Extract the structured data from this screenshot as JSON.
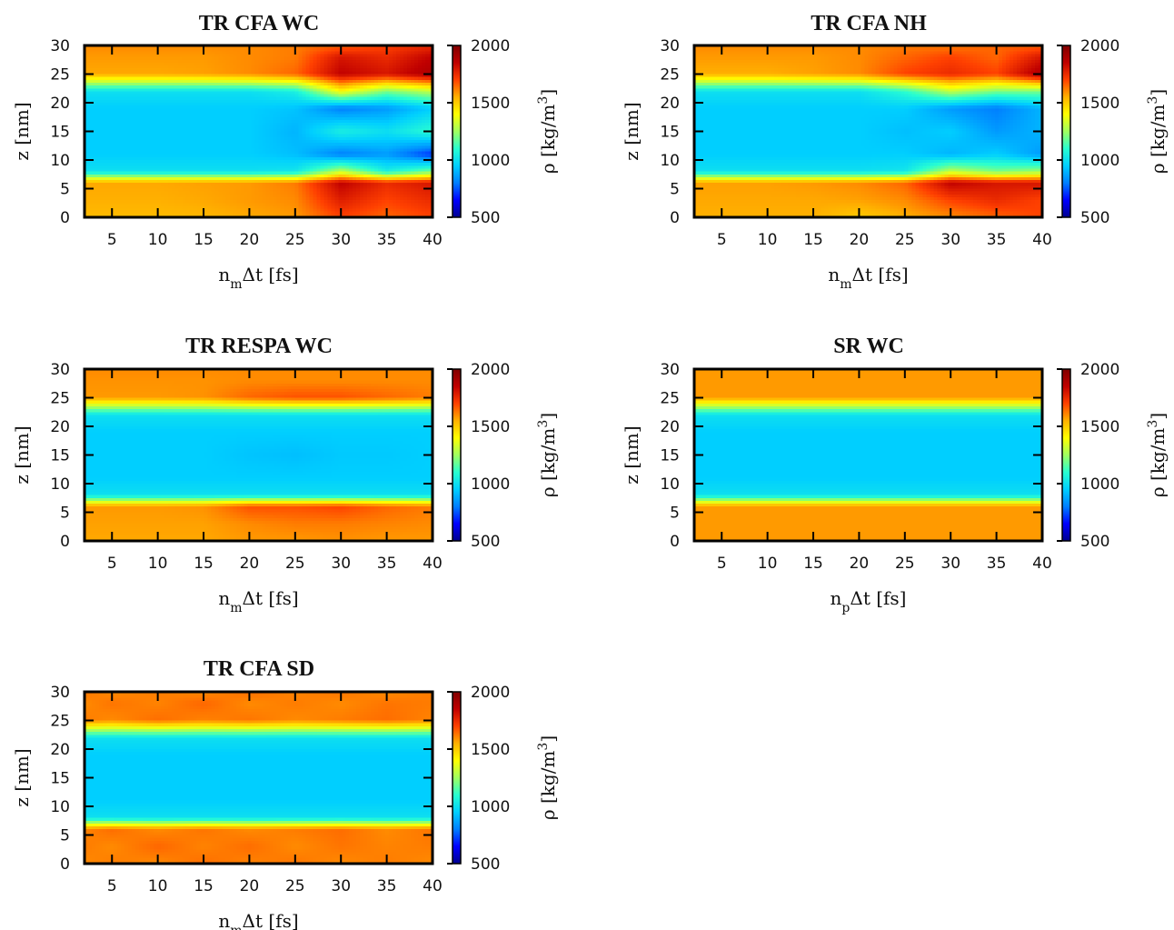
{
  "colormap": [
    "#00008f",
    "#0000ff",
    "#007fff",
    "#00cfff",
    "#29ffd0",
    "#a0ff5f",
    "#ffff00",
    "#ffb000",
    "#ff4000",
    "#c00000",
    "#800000"
  ],
  "chart_data": [
    {
      "type": "heatmap",
      "title": "TR CFA WC",
      "xlabel": "n_mΔt [fs]",
      "ylabel": "z [nm]",
      "colorbar_label": "ρ [kg/m^3]",
      "xlim": [
        2,
        40
      ],
      "ylim": [
        0,
        30
      ],
      "xticks": [
        5,
        10,
        15,
        20,
        25,
        30,
        35,
        40
      ],
      "yticks": [
        0,
        5,
        10,
        15,
        20,
        25,
        30
      ],
      "clim": [
        500,
        2000
      ],
      "cticks": [
        500,
        1000,
        1500,
        2000
      ],
      "xs": [
        2,
        5,
        10,
        15,
        20,
        25,
        30,
        35,
        40
      ],
      "zs": [
        0,
        3,
        6,
        8,
        11,
        15,
        19,
        22,
        25,
        28,
        30
      ],
      "density": [
        [
          1530,
          1530,
          1530,
          1540,
          1560,
          1580,
          1700,
          1650,
          1700
        ],
        [
          1550,
          1550,
          1550,
          1560,
          1580,
          1600,
          1780,
          1700,
          1750
        ],
        [
          1560,
          1560,
          1560,
          1570,
          1580,
          1620,
          1850,
          1750,
          1800
        ],
        [
          1000,
          1000,
          1000,
          1000,
          1000,
          1020,
          1300,
          1050,
          1200
        ],
        [
          950,
          950,
          950,
          950,
          950,
          920,
          800,
          850,
          700
        ],
        [
          950,
          950,
          950,
          950,
          950,
          900,
          1050,
          1000,
          1100
        ],
        [
          950,
          950,
          950,
          950,
          950,
          930,
          800,
          850,
          950
        ],
        [
          1000,
          1000,
          1000,
          1000,
          1000,
          1050,
          1400,
          1200,
          1300
        ],
        [
          1560,
          1560,
          1560,
          1570,
          1600,
          1650,
          1850,
          1800,
          1900
        ],
        [
          1580,
          1580,
          1580,
          1580,
          1600,
          1620,
          1800,
          1750,
          1850
        ],
        [
          1600,
          1600,
          1600,
          1600,
          1600,
          1620,
          1650,
          1700,
          1750
        ]
      ]
    },
    {
      "type": "heatmap",
      "title": "TR CFA NH",
      "xlabel": "n_mΔt [fs]",
      "ylabel": "z [nm]",
      "colorbar_label": "ρ [kg/m^3]",
      "xlim": [
        2,
        40
      ],
      "ylim": [
        0,
        30
      ],
      "xticks": [
        5,
        10,
        15,
        20,
        25,
        30,
        35,
        40
      ],
      "yticks": [
        0,
        5,
        10,
        15,
        20,
        25,
        30
      ],
      "clim": [
        500,
        2000
      ],
      "cticks": [
        500,
        1000,
        1500,
        2000
      ],
      "xs": [
        2,
        5,
        10,
        15,
        20,
        25,
        30,
        35,
        40
      ],
      "zs": [
        0,
        3,
        6,
        8,
        11,
        15,
        19,
        22,
        25,
        28,
        30
      ],
      "density": [
        [
          1550,
          1550,
          1550,
          1550,
          1500,
          1550,
          1600,
          1650,
          1700
        ],
        [
          1560,
          1560,
          1560,
          1560,
          1570,
          1600,
          1700,
          1750,
          1700
        ],
        [
          1570,
          1570,
          1570,
          1580,
          1600,
          1650,
          1850,
          1800,
          1800
        ],
        [
          1000,
          1000,
          1000,
          1000,
          1000,
          1020,
          1300,
          1200,
          1250
        ],
        [
          950,
          950,
          950,
          950,
          950,
          950,
          900,
          950,
          850
        ],
        [
          950,
          950,
          950,
          950,
          950,
          920,
          950,
          850,
          900
        ],
        [
          950,
          950,
          950,
          950,
          950,
          950,
          850,
          800,
          900
        ],
        [
          1000,
          1000,
          1000,
          1000,
          1000,
          1100,
          1300,
          1200,
          1200
        ],
        [
          1550,
          1550,
          1550,
          1570,
          1600,
          1700,
          1750,
          1700,
          1900
        ],
        [
          1580,
          1580,
          1580,
          1580,
          1600,
          1650,
          1700,
          1650,
          1800
        ],
        [
          1600,
          1600,
          1600,
          1600,
          1600,
          1620,
          1620,
          1650,
          1650
        ]
      ]
    },
    {
      "type": "heatmap",
      "title": "TR RESPA WC",
      "xlabel": "n_mΔt [fs]",
      "ylabel": "z [nm]",
      "colorbar_label": "ρ [kg/m^3]",
      "xlim": [
        2,
        40
      ],
      "ylim": [
        0,
        30
      ],
      "xticks": [
        5,
        10,
        15,
        20,
        25,
        30,
        35,
        40
      ],
      "yticks": [
        0,
        5,
        10,
        15,
        20,
        25,
        30
      ],
      "clim": [
        500,
        2000
      ],
      "cticks": [
        500,
        1000,
        1500,
        2000
      ],
      "xs": [
        2,
        5,
        10,
        15,
        20,
        25,
        30,
        35,
        40
      ],
      "zs": [
        0,
        3,
        6,
        8,
        11,
        15,
        19,
        22,
        25,
        28,
        30
      ],
      "density": [
        [
          1560,
          1560,
          1560,
          1560,
          1580,
          1580,
          1590,
          1580,
          1580
        ],
        [
          1570,
          1570,
          1570,
          1570,
          1600,
          1620,
          1620,
          1610,
          1600
        ],
        [
          1580,
          1580,
          1580,
          1590,
          1680,
          1680,
          1700,
          1650,
          1620
        ],
        [
          1000,
          1000,
          1000,
          1000,
          1000,
          1000,
          1000,
          1000,
          1000
        ],
        [
          950,
          950,
          950,
          950,
          950,
          950,
          950,
          950,
          950
        ],
        [
          950,
          950,
          950,
          950,
          930,
          920,
          940,
          940,
          950
        ],
        [
          950,
          950,
          950,
          950,
          950,
          950,
          950,
          950,
          950
        ],
        [
          1000,
          1000,
          1000,
          1000,
          1000,
          1000,
          1000,
          1000,
          1000
        ],
        [
          1580,
          1580,
          1580,
          1590,
          1650,
          1680,
          1680,
          1650,
          1620
        ],
        [
          1590,
          1590,
          1590,
          1590,
          1600,
          1600,
          1600,
          1600,
          1600
        ],
        [
          1600,
          1600,
          1600,
          1600,
          1600,
          1600,
          1600,
          1600,
          1600
        ]
      ]
    },
    {
      "type": "heatmap",
      "title": "SR WC",
      "xlabel": "n_pΔt [fs]",
      "ylabel": "z [nm]",
      "colorbar_label": "ρ [kg/m^3]",
      "xlim": [
        2,
        40
      ],
      "ylim": [
        0,
        30
      ],
      "xticks": [
        5,
        10,
        15,
        20,
        25,
        30,
        35,
        40
      ],
      "yticks": [
        0,
        5,
        10,
        15,
        20,
        25,
        30
      ],
      "clim": [
        500,
        2000
      ],
      "cticks": [
        500,
        1000,
        1500,
        2000
      ],
      "xs": [
        2,
        5,
        10,
        15,
        20,
        25,
        30,
        35,
        40
      ],
      "zs": [
        0,
        3,
        6,
        8,
        11,
        15,
        19,
        22,
        25,
        28,
        30
      ],
      "density": [
        [
          1580,
          1580,
          1580,
          1580,
          1580,
          1580,
          1580,
          1580,
          1580
        ],
        [
          1580,
          1580,
          1580,
          1580,
          1580,
          1580,
          1580,
          1580,
          1580
        ],
        [
          1580,
          1580,
          1580,
          1580,
          1580,
          1580,
          1580,
          1580,
          1580
        ],
        [
          1000,
          1000,
          1000,
          1000,
          1000,
          1000,
          1000,
          1000,
          1000
        ],
        [
          950,
          950,
          950,
          950,
          950,
          950,
          950,
          950,
          950
        ],
        [
          950,
          950,
          950,
          950,
          950,
          950,
          950,
          950,
          950
        ],
        [
          950,
          950,
          950,
          950,
          950,
          950,
          950,
          950,
          950
        ],
        [
          1000,
          1000,
          1000,
          1000,
          1000,
          1000,
          1000,
          1000,
          1000
        ],
        [
          1580,
          1580,
          1580,
          1580,
          1580,
          1580,
          1580,
          1580,
          1580
        ],
        [
          1580,
          1580,
          1580,
          1580,
          1580,
          1580,
          1580,
          1580,
          1580
        ],
        [
          1580,
          1580,
          1580,
          1580,
          1580,
          1580,
          1580,
          1580,
          1580
        ]
      ]
    },
    {
      "type": "heatmap",
      "title": "TR CFA SD",
      "xlabel": "n_mΔt [fs]",
      "ylabel": "z [nm]",
      "colorbar_label": "ρ [kg/m^3]",
      "xlim": [
        2,
        40
      ],
      "ylim": [
        0,
        30
      ],
      "xticks": [
        5,
        10,
        15,
        20,
        25,
        30,
        35,
        40
      ],
      "yticks": [
        0,
        5,
        10,
        15,
        20,
        25,
        30
      ],
      "clim": [
        500,
        2000
      ],
      "cticks": [
        500,
        1000,
        1500,
        2000
      ],
      "xs": [
        2,
        5,
        10,
        15,
        20,
        25,
        30,
        35,
        40
      ],
      "zs": [
        0,
        3,
        6,
        8,
        11,
        15,
        19,
        22,
        25,
        28,
        30
      ],
      "density": [
        [
          1600,
          1620,
          1600,
          1640,
          1610,
          1630,
          1600,
          1620,
          1600
        ],
        [
          1620,
          1600,
          1650,
          1610,
          1640,
          1600,
          1630,
          1610,
          1620
        ],
        [
          1610,
          1640,
          1600,
          1630,
          1600,
          1620,
          1640,
          1600,
          1630
        ],
        [
          1000,
          1000,
          1000,
          1000,
          1000,
          1000,
          1000,
          1000,
          1000
        ],
        [
          950,
          950,
          950,
          950,
          950,
          950,
          950,
          950,
          950
        ],
        [
          950,
          950,
          950,
          950,
          950,
          950,
          950,
          950,
          950
        ],
        [
          950,
          950,
          950,
          950,
          950,
          950,
          950,
          950,
          950
        ],
        [
          1000,
          1000,
          1000,
          1000,
          1000,
          1000,
          1000,
          1000,
          1000
        ],
        [
          1620,
          1600,
          1640,
          1610,
          1630,
          1600,
          1620,
          1640,
          1610
        ],
        [
          1600,
          1630,
          1610,
          1650,
          1600,
          1620,
          1600,
          1630,
          1620
        ],
        [
          1630,
          1600,
          1620,
          1600,
          1640,
          1610,
          1630,
          1600,
          1620
        ]
      ]
    }
  ]
}
